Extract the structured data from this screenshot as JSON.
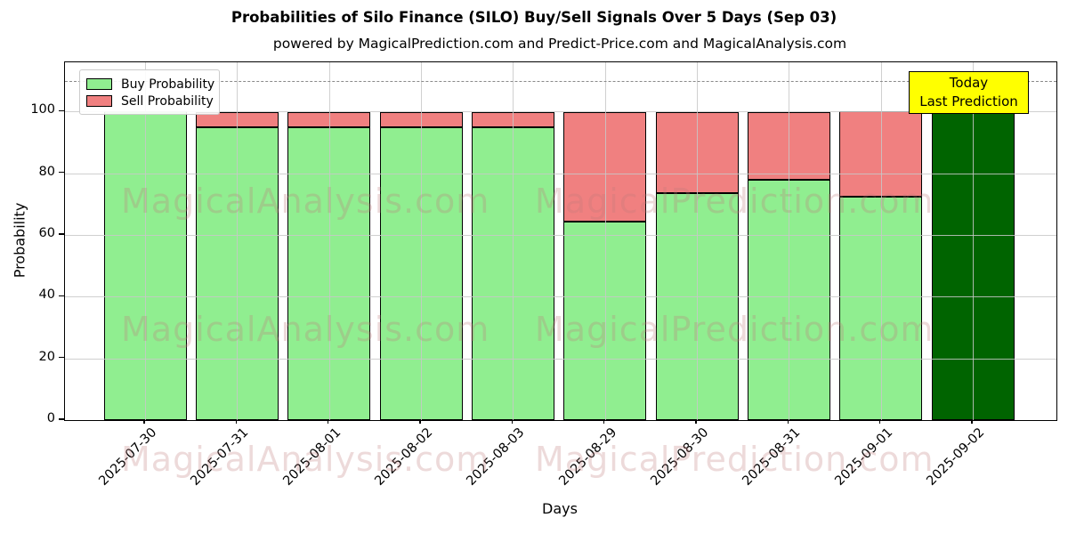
{
  "header": {
    "title": "Probabilities of Silo Finance (SILO) Buy/Sell Signals Over 5 Days (Sep 03)",
    "subtitle": "powered by MagicalPrediction.com and Predict-Price.com and MagicalAnalysis.com"
  },
  "legend": {
    "items": [
      {
        "label": "Buy Probability",
        "color": "#90EE90"
      },
      {
        "label": "Sell Probability",
        "color": "#F08080"
      }
    ]
  },
  "annotation": {
    "line1": "Today",
    "line2": "Last Prediction",
    "bg_color": "#FFFF00"
  },
  "axes": {
    "x_label": "Days",
    "y_label": "Probability"
  },
  "watermarks": {
    "left_text": "MagicalAnalysis.com",
    "right_text": "MagicalPrediction.com"
  },
  "colors": {
    "buy": "#90EE90",
    "sell": "#F08080",
    "today_bar": "#006400",
    "annotation_bg": "#FFFF00",
    "bar_edge": "#000000"
  },
  "chart_data": {
    "type": "bar",
    "stacked": true,
    "title": "Probabilities of Silo Finance (SILO) Buy/Sell Signals Over 5 Days (Sep 03)",
    "xlabel": "Days",
    "ylabel": "Probability",
    "categories": [
      "2025-07-30",
      "2025-07-31",
      "2025-08-01",
      "2025-08-02",
      "2025-08-03",
      "2025-08-29",
      "2025-08-30",
      "2025-08-31",
      "2025-09-01",
      "2025-09-02"
    ],
    "series": [
      {
        "name": "Buy Probability",
        "color": "#90EE90",
        "values": [
          100,
          95,
          95,
          95,
          95,
          64.5,
          73.5,
          78,
          72.5,
          100
        ]
      },
      {
        "name": "Sell Probability",
        "color": "#F08080",
        "values": [
          0,
          5,
          5,
          5,
          5,
          35.5,
          26.5,
          22,
          27.5,
          0
        ]
      }
    ],
    "today_bar": {
      "index": 9,
      "color": "#006400",
      "note": "Today / Last Prediction"
    },
    "ylim": [
      0,
      116
    ],
    "y_ticks": [
      0,
      20,
      40,
      60,
      80,
      100
    ],
    "dashed_hline": 110,
    "grid": true,
    "legend_position": "upper left"
  }
}
